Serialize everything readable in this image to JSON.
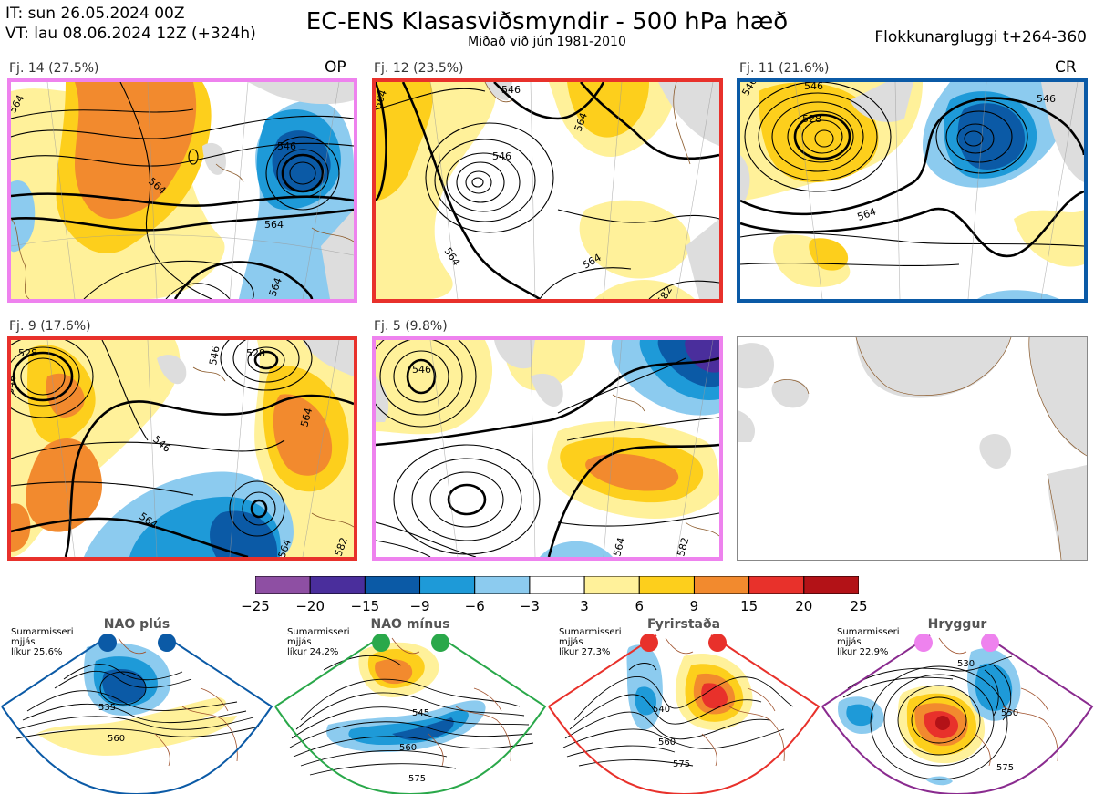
{
  "header": {
    "it_line": "IT: sun 26.05.2024 00Z",
    "vt_line": "VT: lau 08.06.2024 12Z  (+324h)",
    "title": "EC-ENS Klasasviðsmyndir - 500 hPa hæð",
    "subtitle": "Miðað við jún 1981-2010",
    "window": "Flokkunargluggi t+264-360"
  },
  "colors": {
    "magenta_frame": "#ee82ee",
    "red_frame": "#e8312b",
    "blue_frame": "#0b5aa6",
    "green_frame": "#2aa84a",
    "purple_frame": "#8a2b8f"
  },
  "panels": [
    {
      "label": "Fj. 14 (27.5%)",
      "tag": "OP",
      "frame": "magenta_frame",
      "contour_labels": [
        "546",
        "564",
        "564",
        "564",
        "564"
      ]
    },
    {
      "label": "Fj. 12 (23.5%)",
      "tag": "",
      "frame": "red_frame",
      "contour_labels": [
        "546",
        "564",
        "564",
        "564",
        "564",
        "582",
        "546"
      ]
    },
    {
      "label": "Fj. 11 (21.6%)",
      "tag": "CR",
      "frame": "blue_frame",
      "contour_labels": [
        "546",
        "528",
        "546",
        "564",
        "546"
      ]
    },
    {
      "label": "Fj. 9 (17.6%)",
      "tag": "",
      "frame": "red_frame",
      "contour_labels": [
        "528",
        "546",
        "528",
        "546",
        "564",
        "546",
        "564",
        "564",
        "582"
      ]
    },
    {
      "label": "Fj. 5 (9.8%)",
      "tag": "",
      "frame": "magenta_frame",
      "contour_labels": [
        "546",
        "564",
        "582"
      ]
    }
  ],
  "colorbar": {
    "ticks": [
      "−25",
      "−20",
      "−15",
      "−9",
      "−6",
      "−3",
      "3",
      "6",
      "9",
      "15",
      "20",
      "25"
    ],
    "colors": [
      "#8e4fa3",
      "#4a2e9c",
      "#0b5aa6",
      "#1e9ad8",
      "#8ccbef",
      "#ffffff",
      "#fff19a",
      "#fdcf1c",
      "#f28a2e",
      "#e8312b",
      "#b31217"
    ]
  },
  "regimes": [
    {
      "name": "NAO plús",
      "season": "Sumarmisseri",
      "smoothing": "mjjás",
      "prob": "líkur 25,6%",
      "frame": "blue_frame",
      "dot": "#0b5aa6",
      "contour_labels": [
        "535",
        "560"
      ]
    },
    {
      "name": "NAO mínus",
      "season": "Sumarmisseri",
      "smoothing": "mjjás",
      "prob": "líkur 24,2%",
      "frame": "green_frame",
      "dot": "#2aa84a",
      "contour_labels": [
        "545",
        "560",
        "575"
      ]
    },
    {
      "name": "Fyrirstaða",
      "season": "Sumarmisseri",
      "smoothing": "mjjás",
      "prob": "líkur 27,3%",
      "frame": "red_frame",
      "dot": "#e8312b",
      "contour_labels": [
        "540",
        "560",
        "575"
      ]
    },
    {
      "name": "Hryggur",
      "season": "Sumarmisseri",
      "smoothing": "mjjás",
      "prob": "líkur 22,9%",
      "frame": "purple_frame",
      "dot": "#ee82ee",
      "contour_labels": [
        "530",
        "550",
        "575"
      ]
    }
  ]
}
